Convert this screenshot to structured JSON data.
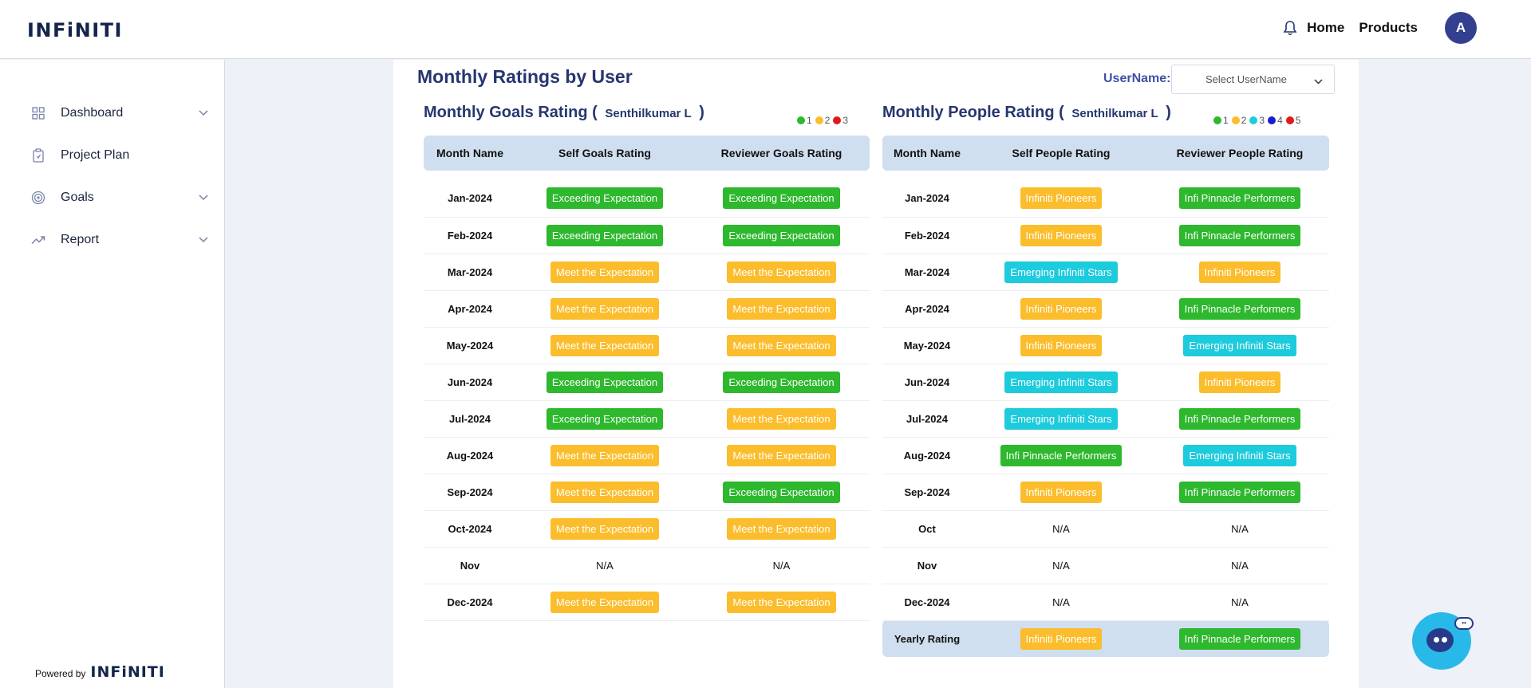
{
  "header": {
    "logo": "INFiNITI",
    "nav": [
      {
        "label": "Home"
      },
      {
        "label": "Products"
      }
    ],
    "avatar_initial": "A"
  },
  "sidebar": {
    "items": [
      {
        "label": "Dashboard",
        "icon": "grid-icon",
        "expandable": true
      },
      {
        "label": "Project Plan",
        "icon": "clipboard-icon",
        "expandable": false
      },
      {
        "label": "Goals",
        "icon": "target-icon",
        "expandable": true
      },
      {
        "label": "Report",
        "icon": "trending-icon",
        "expandable": true
      }
    ],
    "powered_by": "Powered by",
    "powered_logo": "INFiNITI"
  },
  "page": {
    "title": "Monthly Ratings by User",
    "username_label": "UserName:",
    "username_placeholder": "Select UserName"
  },
  "goals": {
    "title": "Monthly Goals Rating",
    "open_paren": "(",
    "close_paren": ")",
    "user": "Senthilkumar L",
    "legend": [
      {
        "label": "1",
        "color": "#2db82d"
      },
      {
        "label": "2",
        "color": "#fbbd2c"
      },
      {
        "label": "3",
        "color": "#e01a1a"
      }
    ],
    "columns": [
      "Month Name",
      "Self Goals Rating",
      "Reviewer Goals Rating"
    ],
    "rows": [
      {
        "month": "Jan-2024",
        "self": "Exceeding Expectation",
        "self_level": "g",
        "reviewer": "Exceeding Expectation",
        "reviewer_level": "g"
      },
      {
        "month": "Feb-2024",
        "self": "Exceeding Expectation",
        "self_level": "g",
        "reviewer": "Exceeding Expectation",
        "reviewer_level": "g"
      },
      {
        "month": "Mar-2024",
        "self": "Meet the Expectation",
        "self_level": "y",
        "reviewer": "Meet the Expectation",
        "reviewer_level": "y"
      },
      {
        "month": "Apr-2024",
        "self": "Meet the Expectation",
        "self_level": "y",
        "reviewer": "Meet the Expectation",
        "reviewer_level": "y"
      },
      {
        "month": "May-2024",
        "self": "Meet the Expectation",
        "self_level": "y",
        "reviewer": "Meet the Expectation",
        "reviewer_level": "y"
      },
      {
        "month": "Jun-2024",
        "self": "Exceeding Expectation",
        "self_level": "g",
        "reviewer": "Exceeding Expectation",
        "reviewer_level": "g"
      },
      {
        "month": "Jul-2024",
        "self": "Exceeding Expectation",
        "self_level": "g",
        "reviewer": "Meet the Expectation",
        "reviewer_level": "y"
      },
      {
        "month": "Aug-2024",
        "self": "Meet the Expectation",
        "self_level": "y",
        "reviewer": "Meet the Expectation",
        "reviewer_level": "y"
      },
      {
        "month": "Sep-2024",
        "self": "Meet the Expectation",
        "self_level": "y",
        "reviewer": "Exceeding Expectation",
        "reviewer_level": "g"
      },
      {
        "month": "Oct-2024",
        "self": "Meet the Expectation",
        "self_level": "y",
        "reviewer": "Meet the Expectation",
        "reviewer_level": "y"
      },
      {
        "month": "Nov",
        "self": "N/A",
        "self_level": null,
        "reviewer": "N/A",
        "reviewer_level": null
      },
      {
        "month": "Dec-2024",
        "self": "Meet the Expectation",
        "self_level": "y",
        "reviewer": "Meet the Expectation",
        "reviewer_level": "y"
      }
    ]
  },
  "people": {
    "title": "Monthly People Rating",
    "open_paren": "(",
    "close_paren": ")",
    "user": "Senthilkumar L",
    "legend": [
      {
        "label": "1",
        "color": "#2db82d"
      },
      {
        "label": "2",
        "color": "#fbbd2c"
      },
      {
        "label": "3",
        "color": "#1ccbdc"
      },
      {
        "label": "4",
        "color": "#1a1ad6"
      },
      {
        "label": "5",
        "color": "#e01a1a"
      }
    ],
    "columns": [
      "Month Name",
      "Self People Rating",
      "Reviewer People Rating"
    ],
    "rows": [
      {
        "month": "Jan-2024",
        "self": "Infiniti Pioneers",
        "self_level": "y",
        "reviewer": "Infi Pinnacle Performers",
        "reviewer_level": "g"
      },
      {
        "month": "Feb-2024",
        "self": "Infiniti Pioneers",
        "self_level": "y",
        "reviewer": "Infi Pinnacle Performers",
        "reviewer_level": "g"
      },
      {
        "month": "Mar-2024",
        "self": "Emerging Infiniti Stars",
        "self_level": "c",
        "reviewer": "Infiniti Pioneers",
        "reviewer_level": "y"
      },
      {
        "month": "Apr-2024",
        "self": "Infiniti Pioneers",
        "self_level": "y",
        "reviewer": "Infi Pinnacle Performers",
        "reviewer_level": "g"
      },
      {
        "month": "May-2024",
        "self": "Infiniti Pioneers",
        "self_level": "y",
        "reviewer": "Emerging Infiniti Stars",
        "reviewer_level": "c"
      },
      {
        "month": "Jun-2024",
        "self": "Emerging Infiniti Stars",
        "self_level": "c",
        "reviewer": "Infiniti Pioneers",
        "reviewer_level": "y"
      },
      {
        "month": "Jul-2024",
        "self": "Emerging Infiniti Stars",
        "self_level": "c",
        "reviewer": "Infi Pinnacle Performers",
        "reviewer_level": "g"
      },
      {
        "month": "Aug-2024",
        "self": "Infi Pinnacle Performers",
        "self_level": "g",
        "reviewer": "Emerging Infiniti Stars",
        "reviewer_level": "c"
      },
      {
        "month": "Sep-2024",
        "self": "Infiniti Pioneers",
        "self_level": "y",
        "reviewer": "Infi Pinnacle Performers",
        "reviewer_level": "g"
      },
      {
        "month": "Oct",
        "self": "N/A",
        "self_level": null,
        "reviewer": "N/A",
        "reviewer_level": null
      },
      {
        "month": "Nov",
        "self": "N/A",
        "self_level": null,
        "reviewer": "N/A",
        "reviewer_level": null
      },
      {
        "month": "Dec-2024",
        "self": "N/A",
        "self_level": null,
        "reviewer": "N/A",
        "reviewer_level": null
      }
    ],
    "yearly": {
      "label": "Yearly Rating",
      "self": "Infiniti Pioneers",
      "self_level": "y",
      "reviewer": "Infi Pinnacle Performers",
      "reviewer_level": "g"
    }
  }
}
